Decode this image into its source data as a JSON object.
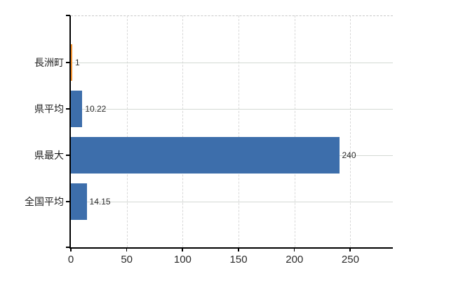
{
  "chart_data": {
    "type": "bar",
    "orientation": "horizontal",
    "title": "",
    "categories": [
      "長洲町",
      "県平均",
      "県最大",
      "全国平均"
    ],
    "values": [
      1,
      10.22,
      240,
      14.15
    ],
    "value_labels": [
      "1",
      "10.22",
      "240",
      "14.15"
    ],
    "bar_colors": [
      "#ed8f2f",
      "#3d6eab",
      "#3d6eab",
      "#3d6eab"
    ],
    "highlight_color": "#ed8f2f",
    "default_bar_color": "#3d6eab",
    "x_tick_labels": [
      "0",
      "50",
      "100",
      "150",
      "200",
      "250"
    ],
    "x_tick_values": [
      0,
      50,
      100,
      150,
      200,
      250
    ],
    "xlim": [
      0,
      288
    ],
    "grid": true,
    "legend": false,
    "axis_color": "#000000",
    "gridline_color": "#d8d8d8"
  }
}
